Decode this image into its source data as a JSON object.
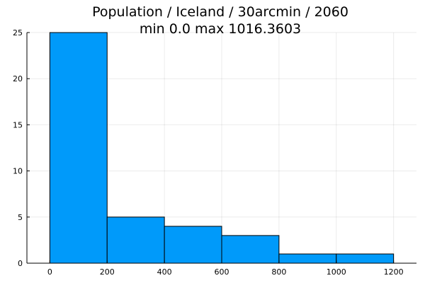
{
  "chart_data": {
    "type": "bar",
    "title": "Population / Iceland / 30arcmin / 2060",
    "subtitle": "min 0.0  max 1016.3603",
    "xlabel": "",
    "ylabel": "",
    "bins": [
      {
        "x0": 0,
        "x1": 200,
        "count": 25
      },
      {
        "x0": 200,
        "x1": 400,
        "count": 5
      },
      {
        "x0": 400,
        "x1": 600,
        "count": 4
      },
      {
        "x0": 600,
        "x1": 800,
        "count": 3
      },
      {
        "x0": 800,
        "x1": 1000,
        "count": 1
      },
      {
        "x0": 1000,
        "x1": 1200,
        "count": 1
      }
    ],
    "xlim": [
      -80,
      1280
    ],
    "ylim": [
      0,
      25
    ],
    "xticks": [
      0,
      200,
      400,
      600,
      800,
      1000,
      1200
    ],
    "yticks": [
      0,
      5,
      10,
      15,
      20,
      25
    ],
    "xtick_labels": [
      "0",
      "200",
      "400",
      "600",
      "800",
      "1000",
      "1200"
    ],
    "ytick_labels": [
      "0",
      "5",
      "10",
      "15",
      "20",
      "25"
    ],
    "bar_color": "#009AFA",
    "grid": true,
    "legend": "none"
  }
}
